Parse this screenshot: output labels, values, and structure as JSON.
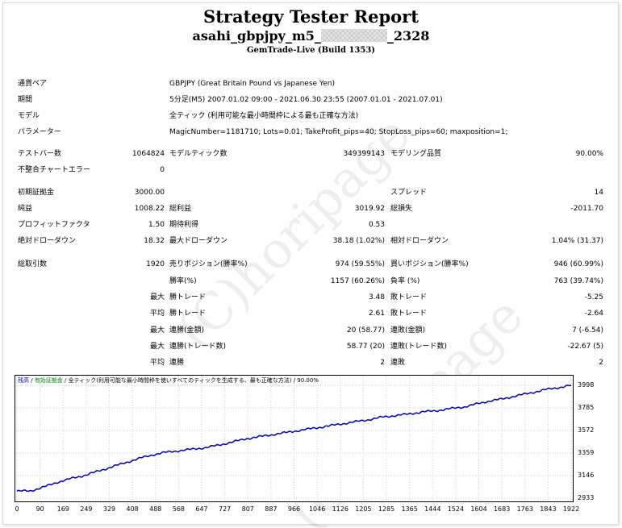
{
  "header": {
    "title": "Strategy Tester Report",
    "ea_prefix": "asahi_gbpjpy_m5_",
    "ea_suffix": "_2328",
    "build": "GemTrade-Live (Build 1353)"
  },
  "info": [
    {
      "label": "通貨ペア",
      "value": "GBPJPY (Great Britain Pound vs Japanese Yen)"
    },
    {
      "label": "期間",
      "value": "5分足(M5) 2007.01.02 09:00 - 2021.06.30 23:55 (2007.01.01 - 2021.07.01)"
    },
    {
      "label": "モデル",
      "value": "全ティック (利用可能な最小時間枠による最も正確な方法)"
    },
    {
      "label": "パラメーター",
      "value": "MagicNumber=1181710; Lots=0.01; TakeProfit_pips=40; StopLoss_pips=60; maxposition=1;"
    }
  ],
  "stats": {
    "bars_label": "テストバー数",
    "bars": "1064824",
    "ticks_label": "モデルティック数",
    "ticks": "349399143",
    "quality_label": "モデリング品質",
    "quality": "90.00%",
    "mismatch_label": "不整合チャートエラー",
    "mismatch": "0",
    "deposit_label": "初期証拠金",
    "deposit": "3000.00",
    "spread_label": "スプレッド",
    "spread": "14",
    "net_label": "純益",
    "net": "1008.22",
    "gross_profit_label": "総利益",
    "gross_profit": "3019.92",
    "gross_loss_label": "総損失",
    "gross_loss": "-2011.70",
    "pf_label": "プロフィットファクタ",
    "pf": "1.50",
    "payoff_label": "期待利得",
    "payoff": "0.53",
    "abs_dd_label": "絶対ドローダウン",
    "abs_dd": "18.32",
    "max_dd_label": "最大ドローダウン",
    "max_dd": "38.18 (1.02%)",
    "rel_dd_label": "相対ドローダウン",
    "rel_dd": "1.04% (31.37)",
    "total_trades_label": "総取引数",
    "total_trades": "1920",
    "short_label": "売りポジション(勝率%)",
    "short": "974 (59.55%)",
    "long_label": "買いポジション(勝率%)",
    "long": "946 (60.99%)",
    "win_label": "勝率(%)",
    "win": "1157 (60.26%)",
    "loss_label": "負率 (%)",
    "loss": "763 (39.74%)",
    "max_label": "最大",
    "avg_label": "平均",
    "largest_win_label": "勝トレード",
    "largest_win": "3.48",
    "largest_loss_label": "敗トレード",
    "largest_loss": "-5.25",
    "avg_win_label": "勝トレード",
    "avg_win": "2.61",
    "avg_loss_label": "敗トレード",
    "avg_loss": "-2.64",
    "consec_wins_money_label": "連勝(金額)",
    "consec_wins_money": "20 (58.77)",
    "consec_losses_money_label": "連敗(金額)",
    "consec_losses_money": "7 (-6.54)",
    "consec_profit_label": "連勝(トレード数)",
    "consec_profit": "58.77 (20)",
    "consec_loss_label": "連敗(トレード数)",
    "consec_loss": "-22.67 (5)",
    "avg_consec_wins_label": "連勝",
    "avg_consec_wins": "2",
    "avg_consec_losses_label": "連敗",
    "avg_consec_losses": "2"
  },
  "watermark": [
    "(C)horipage",
    "(C)horipage"
  ],
  "chart_legend": {
    "balance": "残高",
    "sep": " / ",
    "lots": "有効証拠金",
    "model": "全ティック(利用可能な最小時間枠を使いすべてのティックを生成する、最も正確な方法)",
    "quality": "90.00%"
  },
  "chart_data": {
    "type": "line",
    "series": [
      {
        "values": [
          3000,
          3002,
          3040,
          3085,
          3120,
          3150,
          3190,
          3230,
          3270,
          3310,
          3345,
          3370,
          3385,
          3400,
          3415,
          3440,
          3470,
          3500,
          3520,
          3540,
          3560,
          3580,
          3600,
          3620,
          3640,
          3660,
          3680,
          3705,
          3720,
          3735,
          3755,
          3765,
          3785,
          3800,
          3830,
          3860,
          3880,
          3910,
          3935,
          3965,
          3985,
          4008
        ]
      }
    ],
    "x_ticks": [
      "0",
      "90",
      "169",
      "249",
      "329",
      "408",
      "488",
      "568",
      "647",
      "727",
      "807",
      "887",
      "966",
      "1046",
      "1126",
      "1205",
      "1285",
      "1365",
      "1444",
      "1524",
      "1604",
      "1683",
      "1763",
      "1843",
      "1922"
    ],
    "y_ticks": [
      "3998",
      "3785",
      "3572",
      "3359",
      "3146",
      "2933"
    ],
    "xlim": [
      0,
      1922
    ],
    "ylim": [
      2933,
      4008
    ],
    "color": "#0000b0"
  }
}
